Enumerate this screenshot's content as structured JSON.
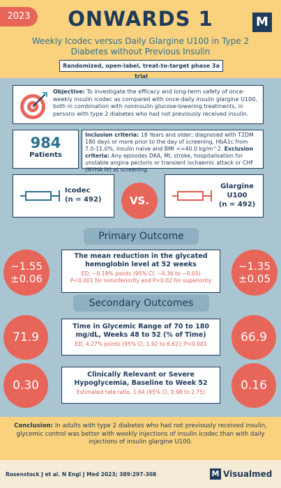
{
  "header": {
    "year": "2023",
    "title": "ONWARDS 1",
    "logo": "M",
    "subtitle": "Weekly Icodec versus Daily Glargine U100 in Type 2 Diabetes without Previous Insulin",
    "design": "Randomized, open-label, treat-to-target phase 3a trial"
  },
  "objective": {
    "label": "Objective:",
    "text": "To investigate the efficacy and long-term safety of once-weekly insulin icodec as compared with once-daily insulin glargine U100, both in combination with noninsulin glucose-lowering treatments, in persons with type 2 diabetes who had not previously received insulin."
  },
  "patients": {
    "number": "984",
    "label": "Patients"
  },
  "criteria": {
    "inclusion_label": "Inclusion criteria:",
    "inclusion_text": "18 Years and older; diagnosed with T2DM 180 days or more prior to the day of screening, HbA1c from 7.0-11.0%, insulin naive and BMI <=40.0 kg/m^2.",
    "exclusion_label": "Exclusion criteria:",
    "exclusion_text": "Any episodes DKA, MI, stroke, hospitalisation for unstable angina pectoris or transient ischaemic attack or CHF (NYHA IV) at screening."
  },
  "arms": {
    "icodec": {
      "name": "Icodec",
      "n": "(n = 492)"
    },
    "vs": "VS.",
    "glargine": {
      "name": "Glargine U100",
      "n": "(n = 492)"
    }
  },
  "primary": {
    "heading": "Primary Outcome",
    "left": "−1.55 ±0.06",
    "right": "−1.35 ±0.05",
    "title": "The mean reduction in the glycated hemoglobin level at 52 weeks",
    "ed": "ED, −0.19% points (95% CI, −0.36 to −0.03)",
    "p": "P<0.001 for noninferiority and P=0.02 for superiority"
  },
  "secondary": {
    "heading": "Secondary Outcomes",
    "outcomes": [
      {
        "left": "71.9",
        "right": "66.9",
        "title": "Time in Glycemic Range of 70 to 180 mg/dL, Weeks 48 to 52 (% of Time)",
        "detail": "ED, 4.27% points (95% CI, 1.92 to 6.62); P<0.001"
      },
      {
        "left": "0.30",
        "right": "0.16",
        "title": "Clinically Relevant or Severe Hypoglycemia, Baseline to Week 52",
        "detail": "Estimated rate ratio, 1.64 (95% CI, 0.98 to 2.75)"
      }
    ]
  },
  "conclusion": {
    "label": "Conclusion:",
    "text": "In adults with type 2 diabetes who had not previously received insulin, glycemic control was better with weekly injections of insulin icodec than with daily injections of insulin glargine U100."
  },
  "footer": {
    "citation": "Rosenstock J et al. N Engl J Med 2023; 389:297-308",
    "logo": "M",
    "brand": "Visualmed"
  }
}
